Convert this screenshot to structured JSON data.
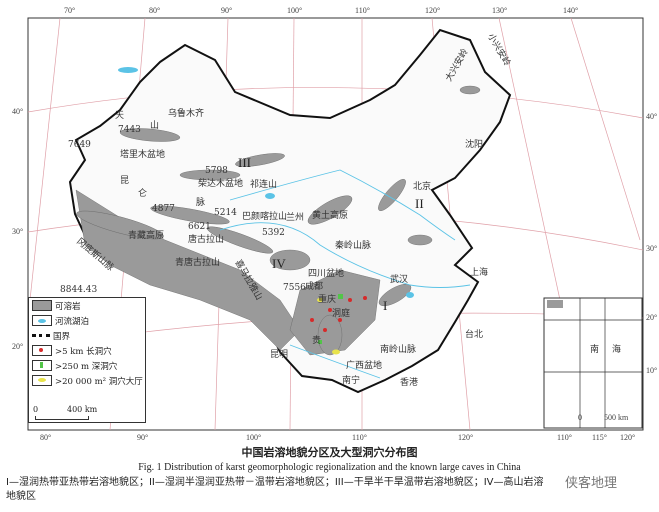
{
  "figure": {
    "title_cn": "中国岩溶地貌分区及大型洞穴分布图",
    "title_en": "Fig. 1    Distribution of karst geomorphologic regionalization and the known large caves in China",
    "caption": "I—湿润热带亚热带岩溶地貌区；II—湿润半湿润亚热带－温带岩溶地貌区；III—干旱半干旱温带岩溶地貌区；IV—高山岩溶地貌区",
    "watermark": "侠客地理"
  },
  "axes": {
    "top": [
      "70°",
      "80°",
      "90°",
      "100°",
      "110°",
      "120°",
      "130°",
      "140°"
    ],
    "left": [
      "40°",
      "30°",
      "20°"
    ],
    "right": [
      "40°",
      "30°",
      "20°",
      "10°"
    ],
    "bottom": [
      "80°",
      "90°",
      "100°",
      "110°",
      "120°"
    ],
    "inset_bottom": [
      "110°",
      "115°",
      "120°"
    ],
    "inset_right": [
      "20°",
      "10°"
    ]
  },
  "legend": {
    "items": [
      {
        "label": "可溶岩",
        "color": "#9a9a9a",
        "icon": "grey-fill"
      },
      {
        "label": "河流湖泊",
        "color": "#5bc3e6",
        "icon": "lake"
      },
      {
        "label": "国界",
        "color": "#111111",
        "icon": "border-line"
      },
      {
        "label": ">5 km  长洞穴",
        "color": "#d62a2a",
        "icon": "red-dot"
      },
      {
        "label": ">250 m  深洞穴",
        "color": "#52c548",
        "icon": "green-mark"
      },
      {
        "label": ">20 000 m² 洞穴大厅",
        "color": "#e8e34a",
        "icon": "yellow-ellipse"
      }
    ],
    "scale": {
      "start": "0",
      "end": "400 km"
    }
  },
  "regions": {
    "I": "I",
    "II": "II",
    "III": "III",
    "IV": "IV"
  },
  "places": {
    "wulumuqi": "乌鲁木齐",
    "tianshan_a": "天",
    "tianshan_b": "山",
    "tarim": "塔里木盆地",
    "kunlun_a": "昆",
    "kunlun_b": "仑",
    "kunlun_c": "脉",
    "qaidam": "柴达木盆地",
    "qilian": "祁连山",
    "qingzang": "青藏高原",
    "tanggula": "唐古拉山",
    "bayankala": "巴颜喀拉山",
    "qinghai_tang": "青唐古拉山",
    "himalaya": "喜马拉雅山",
    "gangdise": "冈底斯山脉",
    "huangtu": "黄土高原",
    "lanzhou": "兰州",
    "qinling": "秦岭山脉",
    "sichuan": "四川盆地",
    "chengdu": "成都",
    "chongqing": "重庆",
    "beijing": "北京",
    "shenyang": "沈阳",
    "shanghai": "上海",
    "wuhan": "武汉",
    "taibei": "台北",
    "xianggang": "香港",
    "nanning": "南宁",
    "guangxi": "广西盆地",
    "nanling": "南岭山脉",
    "kunming": "昆明",
    "guizhou": "贵",
    "dongting": "洞庭",
    "da_xinganling": "大兴安岭",
    "xiao_xinganling": "小兴安岭",
    "nanhai": "南海",
    "e7443": "7443",
    "e7649": "7649",
    "e8844": "8844.43",
    "e5214": "5214",
    "e6621": "6621",
    "e4877": "4877",
    "e7556": "7556",
    "e5798": "5798",
    "e5392": "5392"
  },
  "inset": {
    "nanhai_a": "南",
    "nanhai_b": "海",
    "scale_start": "0",
    "scale_end": "500 km"
  }
}
